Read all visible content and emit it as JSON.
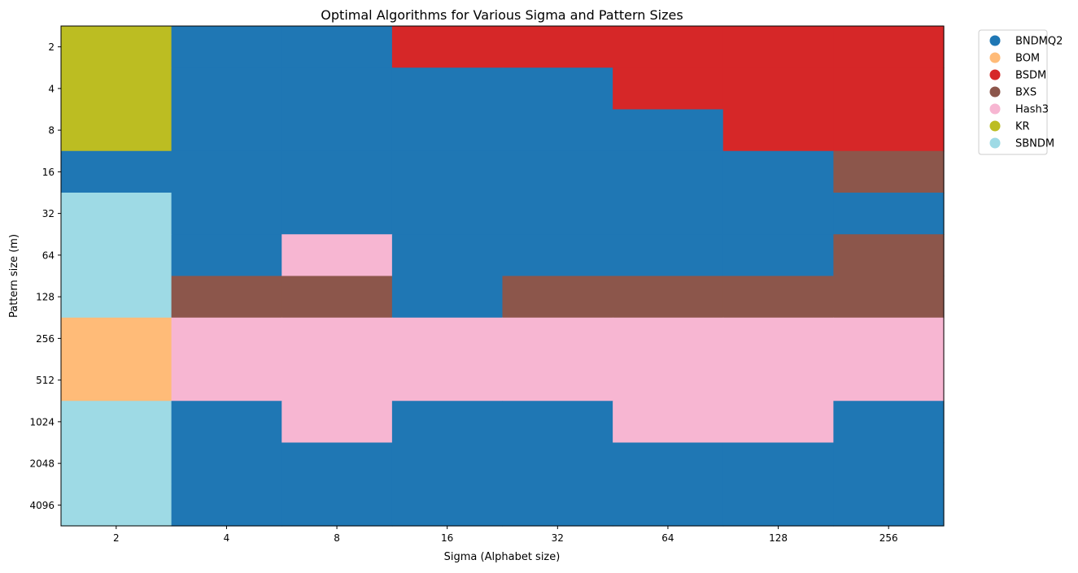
{
  "chart_data": {
    "type": "heatmap",
    "title": "Optimal Algorithms for Various Sigma and Pattern Sizes",
    "xlabel": "Sigma (Alphabet size)",
    "ylabel": "Pattern size (m)",
    "x_categories": [
      "2",
      "4",
      "8",
      "16",
      "32",
      "64",
      "128",
      "256"
    ],
    "y_categories": [
      "2",
      "4",
      "8",
      "16",
      "32",
      "64",
      "128",
      "256",
      "512",
      "1024",
      "2048",
      "4096"
    ],
    "legend_position": "outside-top-right",
    "grid": false,
    "legend": [
      {
        "name": "BNDMQ2",
        "color": "#1f77b4"
      },
      {
        "name": "BOM",
        "color": "#ffbb78"
      },
      {
        "name": "BSDM",
        "color": "#d62728"
      },
      {
        "name": "BXS",
        "color": "#8c564b"
      },
      {
        "name": "Hash3",
        "color": "#f7b6d2"
      },
      {
        "name": "KR",
        "color": "#bcbd22"
      },
      {
        "name": "SBNDM",
        "color": "#9edae5"
      }
    ],
    "cells": [
      [
        "KR",
        "BNDMQ2",
        "BNDMQ2",
        "BSDM",
        "BSDM",
        "BSDM",
        "BSDM",
        "BSDM"
      ],
      [
        "KR",
        "BNDMQ2",
        "BNDMQ2",
        "BNDMQ2",
        "BNDMQ2",
        "BSDM",
        "BSDM",
        "BSDM"
      ],
      [
        "KR",
        "BNDMQ2",
        "BNDMQ2",
        "BNDMQ2",
        "BNDMQ2",
        "BNDMQ2",
        "BSDM",
        "BSDM"
      ],
      [
        "BNDMQ2",
        "BNDMQ2",
        "BNDMQ2",
        "BNDMQ2",
        "BNDMQ2",
        "BNDMQ2",
        "BNDMQ2",
        "BXS"
      ],
      [
        "SBNDM",
        "BNDMQ2",
        "BNDMQ2",
        "BNDMQ2",
        "BNDMQ2",
        "BNDMQ2",
        "BNDMQ2",
        "BNDMQ2"
      ],
      [
        "SBNDM",
        "BNDMQ2",
        "Hash3",
        "BNDMQ2",
        "BNDMQ2",
        "BNDMQ2",
        "BNDMQ2",
        "BXS"
      ],
      [
        "SBNDM",
        "BXS",
        "BXS",
        "BNDMQ2",
        "BXS",
        "BXS",
        "BXS",
        "BXS"
      ],
      [
        "BOM",
        "Hash3",
        "Hash3",
        "Hash3",
        "Hash3",
        "Hash3",
        "Hash3",
        "Hash3"
      ],
      [
        "BOM",
        "Hash3",
        "Hash3",
        "Hash3",
        "Hash3",
        "Hash3",
        "Hash3",
        "Hash3"
      ],
      [
        "SBNDM",
        "BNDMQ2",
        "Hash3",
        "BNDMQ2",
        "BNDMQ2",
        "Hash3",
        "Hash3",
        "BNDMQ2"
      ],
      [
        "SBNDM",
        "BNDMQ2",
        "BNDMQ2",
        "BNDMQ2",
        "BNDMQ2",
        "BNDMQ2",
        "BNDMQ2",
        "BNDMQ2"
      ],
      [
        "SBNDM",
        "BNDMQ2",
        "BNDMQ2",
        "BNDMQ2",
        "BNDMQ2",
        "BNDMQ2",
        "BNDMQ2",
        "BNDMQ2"
      ]
    ]
  }
}
